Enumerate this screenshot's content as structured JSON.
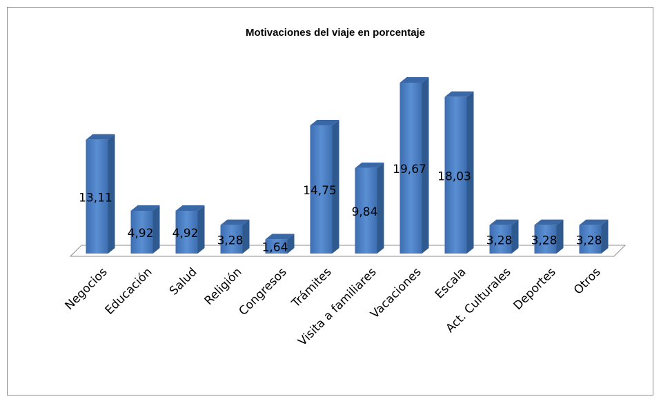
{
  "chart_data": {
    "type": "bar3d",
    "title": "Motivaciones del viaje en porcentaje",
    "categories": [
      "Negocios",
      "Educación",
      "Salud",
      "Religión",
      "Congresos",
      "Trámites",
      "Visita a familiares",
      "Vacaciones",
      "Escala",
      "Act. Culturales",
      "Deportes",
      "Otros"
    ],
    "values": [
      13.11,
      4.92,
      4.92,
      3.28,
      1.64,
      14.75,
      9.84,
      19.67,
      18.03,
      3.28,
      3.28,
      3.28
    ],
    "value_labels": [
      "13,11",
      "4,92",
      "4,92",
      "3,28",
      "1,64",
      "14,75",
      "9,84",
      "19,67",
      "18,03",
      "3,28",
      "3,28",
      "3,28"
    ],
    "color": "#4a7ebb"
  }
}
